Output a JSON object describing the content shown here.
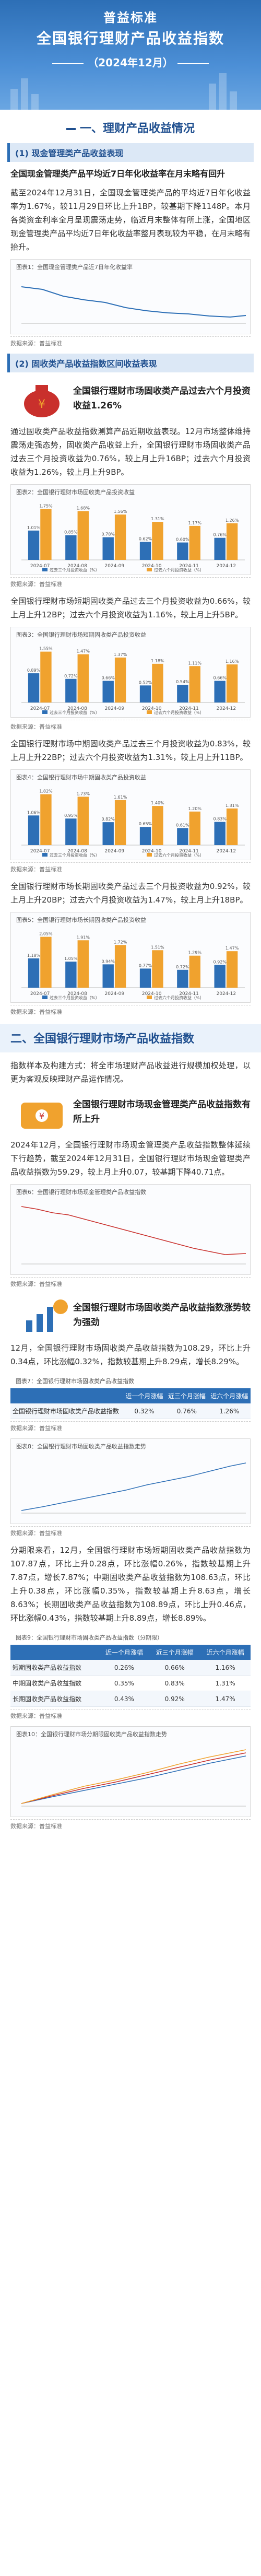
{
  "header": {
    "title_line1": "普益标准",
    "title_line2": "全国银行理财产品收益指数",
    "period": "（2024年12月）"
  },
  "section1": {
    "title": "一、理财产品收益情况",
    "sub1": "(1) 现金管理类产品收益表现",
    "highlight": "全国现金管理类产品平均近7日年化收益率在月末略有回升",
    "para1": "截至2024年12月31日，全国现金管理类产品的平均近7日年化收益率为1.67%，较11月29日环比上升1BP，较基期下降1148P。本月各类资金利率全月呈现震荡走势，临近月末整体有所上涨，全国地区现金管理类产品平均近7日年化收益率整月表现较为平稳，在月末略有抬升。",
    "chart1_title": "图表1：全国现金管理类产品近7日年化收益率",
    "source": "数据来源：普益标准",
    "sub2": "(2) 固收类产品收益指数区间收益表现",
    "feat1": "全国银行理财市场固收类产品过去六个月投资收益1.26%",
    "para2": "通过固收类产品收益指数测算产品近期收益表现。12月市场整体维持震荡走强态势，固收类产品收益上升，全国银行理财市场固收类产品过去三个月投资收益为0.76%，较上月上升16BP；过去六个月投资收益为1.26%，较上月上升9BP。",
    "chart2_title": "图表2：全国银行理财市场固收类产品投资收益",
    "chart2_data": {
      "type": "bar",
      "categories": [
        "2024-07",
        "2024-08",
        "2024-09",
        "2024-10",
        "2024-11",
        "2024-12"
      ],
      "series": [
        {
          "name": "过去三个月投资收益（%）",
          "values": [
            1.01,
            0.85,
            0.78,
            0.62,
            0.6,
            0.76
          ]
        },
        {
          "name": "过去六个月投资收益（%）",
          "values": [
            1.75,
            1.68,
            1.56,
            1.31,
            1.17,
            1.26
          ]
        }
      ]
    },
    "para3": "全国银行理财市场短期固收类产品过去三个月投资收益为0.66%，较上月上升12BP；过去六个月投资收益为1.16%，较上月上升5BP。",
    "chart3_title": "图表3：全国银行理财市场短期固收类产品投资收益",
    "chart3_data": {
      "type": "bar",
      "categories": [
        "2024-07",
        "2024-08",
        "2024-09",
        "2024-10",
        "2024-11",
        "2024-12"
      ],
      "series": [
        {
          "name": "过去三个月投资收益（%）",
          "values": [
            0.89,
            0.72,
            0.66,
            0.52,
            0.54,
            0.66
          ]
        },
        {
          "name": "过去六个月投资收益（%）",
          "values": [
            1.55,
            1.47,
            1.37,
            1.18,
            1.11,
            1.16
          ]
        }
      ]
    },
    "para4": "全国银行理财市场中期固收类产品过去三个月投资收益为0.83%，较上月上升22BP；过去六个月投资收益为1.31%，较上月上升11BP。",
    "chart4_title": "图表4：全国银行理财市场中期固收类产品投资收益",
    "chart4_data": {
      "type": "bar",
      "categories": [
        "2024-07",
        "2024-08",
        "2024-09",
        "2024-10",
        "2024-11",
        "2024-12"
      ],
      "series": [
        {
          "name": "过去三个月投资收益（%）",
          "values": [
            1.06,
            0.95,
            0.82,
            0.65,
            0.61,
            0.83
          ]
        },
        {
          "name": "过去六个月投资收益（%）",
          "values": [
            1.82,
            1.73,
            1.61,
            1.4,
            1.2,
            1.31
          ]
        }
      ]
    },
    "para5": "全国银行理财市场长期固收类产品过去三个月投资收益为0.92%，较上月上升20BP；过去六个月投资收益为1.47%，较上月上升18BP。",
    "chart5_title": "图表5：全国银行理财市场长期固收类产品投资收益",
    "chart5_data": {
      "type": "bar",
      "categories": [
        "2024-07",
        "2024-08",
        "2024-09",
        "2024-10",
        "2024-11",
        "2024-12"
      ],
      "series": [
        {
          "name": "过去三个月投资收益（%）",
          "values": [
            1.18,
            1.05,
            0.94,
            0.77,
            0.72,
            0.92
          ]
        },
        {
          "name": "过去六个月投资收益（%）",
          "values": [
            2.05,
            1.91,
            1.72,
            1.51,
            1.29,
            1.47
          ]
        }
      ]
    }
  },
  "section2": {
    "title": "二、全国银行理财市场产品收益指数",
    "para1": "指数样本及构建方式：将全市场理财产品收益进行规模加权处理，以更为客观反映理财产品运作情况。",
    "feat2": "全国银行理财市场现金管理类产品收益指数有所上升",
    "para2": "2024年12月，全国银行理财市场现金管理类产品收益指数整体延续下行趋势，截至2024年12月31日，全国银行理财市场现金管理类产品收益指数为59.29，较上月上升0.07，较基期下降40.71点。",
    "chart6_title": "图表6：全国银行理财市场现金管理类产品收益指数",
    "feat3": "全国银行理财市场固收类产品收益指数涨势较为强劲",
    "para3": "12月，全国银行理财市场固收类产品收益指数为108.29，环比上升0.34点，环比涨幅0.32%，指数较基期上升8.29点，增长8.29%。",
    "table1_title": "图表7：全国银行理财市场固收类产品收益指数",
    "table1": {
      "headers": [
        "",
        "近一个月涨幅",
        "近三个月涨幅",
        "近六个月涨幅"
      ],
      "rows": [
        [
          "全国银行理财市场固收类产品收益指数",
          "0.32%",
          "0.76%",
          "1.26%"
        ]
      ]
    },
    "chart8_title": "图表8：全国银行理财市场固收类产品收益指数走势",
    "para4": "分期限来看，12月，全国银行理财市场短期固收类产品收益指数为107.87点，环比上升0.28点，环比涨幅0.26%，指数较基期上升7.87点，增长7.87%；中期固收类产品收益指数为108.63点，环比上升0.38点，环比涨幅0.35%，指数较基期上升8.63点，增长8.63%；长期固收类产品收益指数为108.89点，环比上升0.46点，环比涨幅0.43%，指数较基期上升8.89点，增长8.89%。",
    "table2_title": "图表9：全国银行理财市场固收类产品收益指数（分期限）",
    "table2": {
      "headers": [
        "",
        "近一个月涨幅",
        "近三个月涨幅",
        "近六个月涨幅"
      ],
      "rows": [
        [
          "短期固收类产品收益指数",
          "0.26%",
          "0.66%",
          "1.16%"
        ],
        [
          "中期固收类产品收益指数",
          "0.35%",
          "0.83%",
          "1.31%"
        ],
        [
          "长期固收类产品收益指数",
          "0.43%",
          "0.92%",
          "1.47%"
        ]
      ]
    },
    "chart10_title": "图表10：全国银行理财市场分期限固收类产品收益指数走势",
    "source": "数据来源：普益标准"
  },
  "colors": {
    "primary": "#2d6fb6",
    "dark": "#1f4f8f",
    "red": "#c9302c",
    "gold": "#f0a22e"
  }
}
